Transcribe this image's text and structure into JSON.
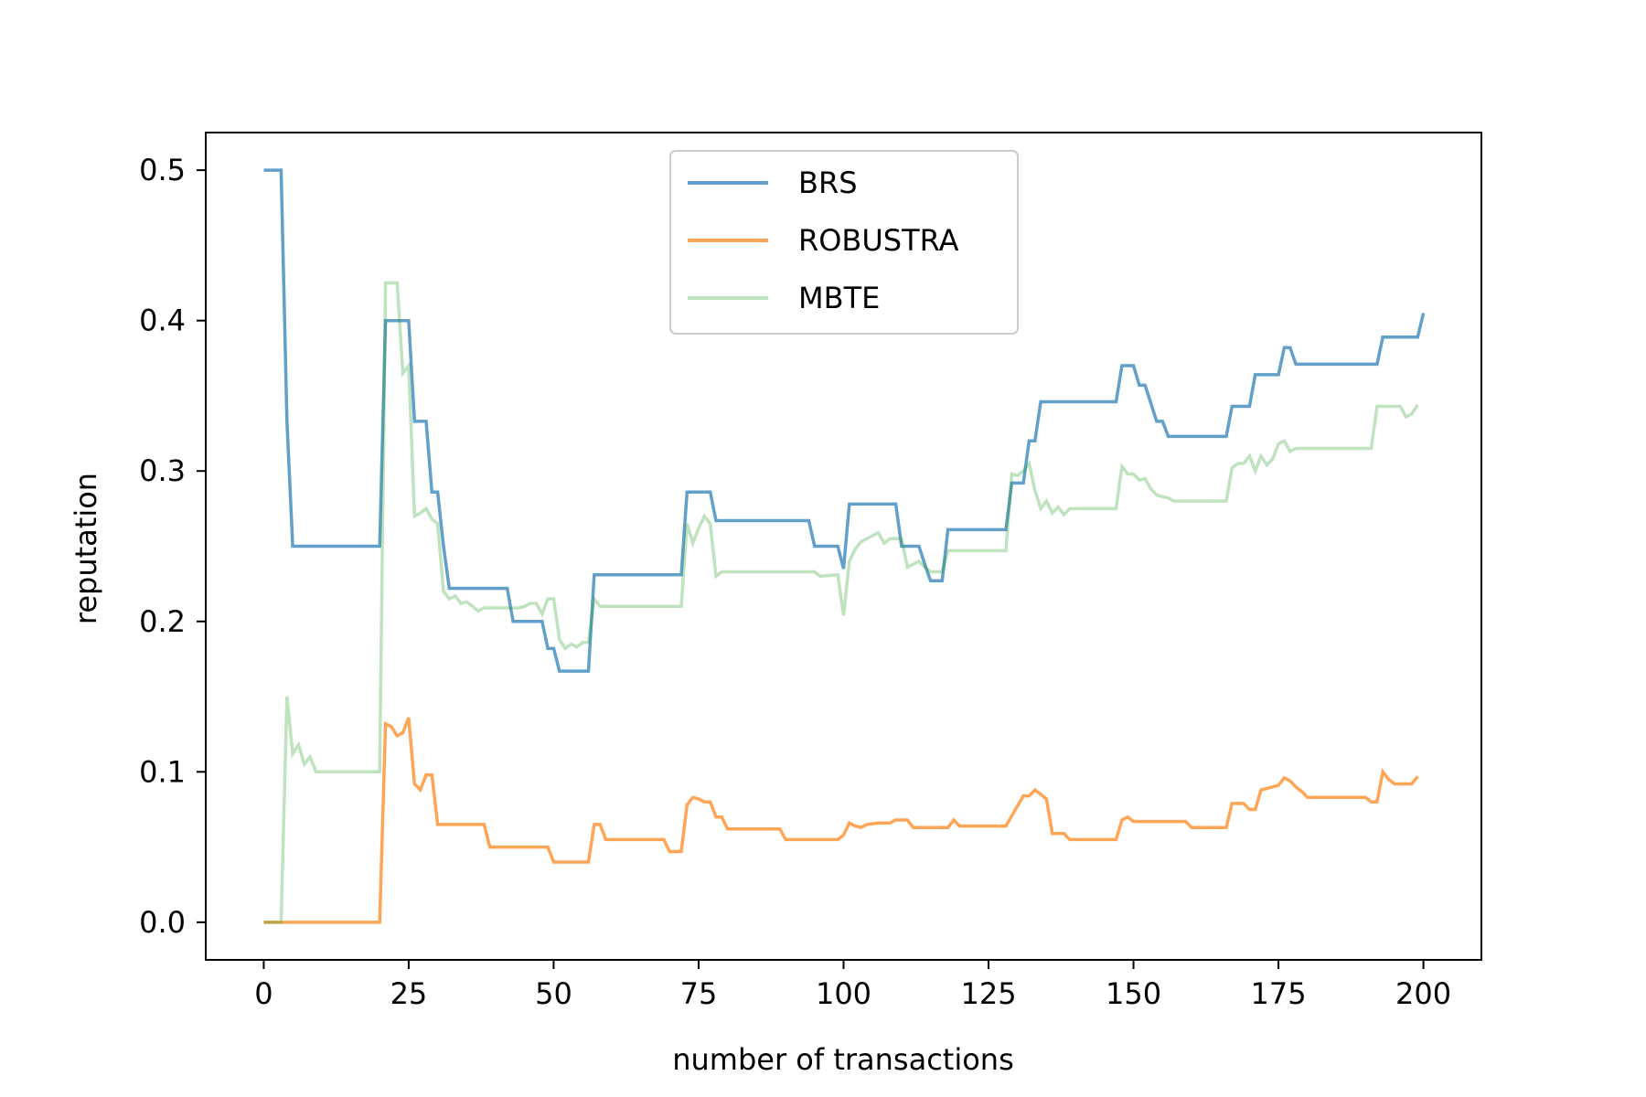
{
  "chart_data": {
    "type": "line",
    "title": "",
    "xlabel": "number of transactions",
    "ylabel": "reputation",
    "xlim": [
      -10,
      210
    ],
    "ylim": [
      -0.025,
      0.525
    ],
    "xticks": [
      0,
      25,
      50,
      75,
      100,
      125,
      150,
      175,
      200
    ],
    "yticks": [
      0.0,
      0.1,
      0.2,
      0.3,
      0.4,
      0.5
    ],
    "xtick_labels": [
      "0",
      "25",
      "50",
      "75",
      "100",
      "125",
      "150",
      "175",
      "200"
    ],
    "ytick_labels": [
      "0.0",
      "0.1",
      "0.2",
      "0.3",
      "0.4",
      "0.5"
    ],
    "grid": false,
    "legend_position": "top-center",
    "series": [
      {
        "name": "BRS",
        "color": "#1f77b4",
        "opacity": 0.7,
        "points": [
          [
            0,
            0.5
          ],
          [
            3,
            0.5
          ],
          [
            4,
            0.333
          ],
          [
            5,
            0.25
          ],
          [
            20,
            0.25
          ],
          [
            21,
            0.4
          ],
          [
            25,
            0.4
          ],
          [
            26,
            0.333
          ],
          [
            28,
            0.333
          ],
          [
            29,
            0.286
          ],
          [
            30,
            0.286
          ],
          [
            31,
            0.25
          ],
          [
            32,
            0.222
          ],
          [
            42,
            0.222
          ],
          [
            43,
            0.2
          ],
          [
            48,
            0.2
          ],
          [
            49,
            0.182
          ],
          [
            50,
            0.182
          ],
          [
            51,
            0.167
          ],
          [
            56,
            0.167
          ],
          [
            57,
            0.231
          ],
          [
            72,
            0.231
          ],
          [
            73,
            0.286
          ],
          [
            77,
            0.286
          ],
          [
            78,
            0.267
          ],
          [
            94,
            0.267
          ],
          [
            95,
            0.25
          ],
          [
            99,
            0.25
          ],
          [
            100,
            0.235
          ],
          [
            101,
            0.278
          ],
          [
            109,
            0.278
          ],
          [
            110,
            0.25
          ],
          [
            113,
            0.25
          ],
          [
            114,
            0.238
          ],
          [
            115,
            0.227
          ],
          [
            117,
            0.227
          ],
          [
            118,
            0.261
          ],
          [
            128,
            0.261
          ],
          [
            129,
            0.292
          ],
          [
            131,
            0.292
          ],
          [
            132,
            0.32
          ],
          [
            133,
            0.32
          ],
          [
            134,
            0.346
          ],
          [
            147,
            0.346
          ],
          [
            148,
            0.37
          ],
          [
            150,
            0.37
          ],
          [
            151,
            0.357
          ],
          [
            152,
            0.357
          ],
          [
            154,
            0.333
          ],
          [
            155,
            0.333
          ],
          [
            156,
            0.323
          ],
          [
            166,
            0.323
          ],
          [
            167,
            0.343
          ],
          [
            170,
            0.343
          ],
          [
            171,
            0.364
          ],
          [
            175,
            0.364
          ],
          [
            176,
            0.382
          ],
          [
            177,
            0.382
          ],
          [
            178,
            0.371
          ],
          [
            192,
            0.371
          ],
          [
            193,
            0.389
          ],
          [
            199,
            0.389
          ],
          [
            200,
            0.405
          ]
        ]
      },
      {
        "name": "ROBUSTRA",
        "color": "#ff7f0e",
        "opacity": 0.7,
        "points": [
          [
            0,
            0.0
          ],
          [
            20,
            0.0
          ],
          [
            21,
            0.132
          ],
          [
            22,
            0.13
          ],
          [
            23,
            0.124
          ],
          [
            24,
            0.126
          ],
          [
            25,
            0.136
          ],
          [
            26,
            0.092
          ],
          [
            27,
            0.088
          ],
          [
            28,
            0.098
          ],
          [
            29,
            0.098
          ],
          [
            30,
            0.065
          ],
          [
            38,
            0.065
          ],
          [
            39,
            0.05
          ],
          [
            49,
            0.05
          ],
          [
            50,
            0.04
          ],
          [
            56,
            0.04
          ],
          [
            57,
            0.065
          ],
          [
            58,
            0.065
          ],
          [
            59,
            0.055
          ],
          [
            69,
            0.055
          ],
          [
            70,
            0.047
          ],
          [
            72,
            0.047
          ],
          [
            73,
            0.078
          ],
          [
            74,
            0.083
          ],
          [
            75,
            0.082
          ],
          [
            76,
            0.08
          ],
          [
            77,
            0.08
          ],
          [
            78,
            0.07
          ],
          [
            79,
            0.07
          ],
          [
            80,
            0.062
          ],
          [
            89,
            0.062
          ],
          [
            90,
            0.055
          ],
          [
            99,
            0.055
          ],
          [
            100,
            0.058
          ],
          [
            101,
            0.066
          ],
          [
            102,
            0.064
          ],
          [
            103,
            0.063
          ],
          [
            104,
            0.065
          ],
          [
            106,
            0.066
          ],
          [
            108,
            0.066
          ],
          [
            109,
            0.068
          ],
          [
            111,
            0.068
          ],
          [
            112,
            0.063
          ],
          [
            118,
            0.063
          ],
          [
            119,
            0.068
          ],
          [
            120,
            0.064
          ],
          [
            128,
            0.064
          ],
          [
            131,
            0.084
          ],
          [
            132,
            0.084
          ],
          [
            133,
            0.088
          ],
          [
            134,
            0.085
          ],
          [
            135,
            0.082
          ],
          [
            136,
            0.059
          ],
          [
            138,
            0.059
          ],
          [
            139,
            0.055
          ],
          [
            147,
            0.055
          ],
          [
            148,
            0.068
          ],
          [
            149,
            0.07
          ],
          [
            150,
            0.067
          ],
          [
            159,
            0.067
          ],
          [
            160,
            0.063
          ],
          [
            166,
            0.063
          ],
          [
            167,
            0.079
          ],
          [
            169,
            0.079
          ],
          [
            170,
            0.075
          ],
          [
            171,
            0.075
          ],
          [
            172,
            0.088
          ],
          [
            173,
            0.089
          ],
          [
            174,
            0.09
          ],
          [
            175,
            0.091
          ],
          [
            176,
            0.096
          ],
          [
            177,
            0.094
          ],
          [
            178,
            0.09
          ],
          [
            179,
            0.087
          ],
          [
            180,
            0.083
          ],
          [
            190,
            0.083
          ],
          [
            191,
            0.08
          ],
          [
            192,
            0.08
          ],
          [
            193,
            0.1
          ],
          [
            194,
            0.095
          ],
          [
            195,
            0.092
          ],
          [
            198,
            0.092
          ],
          [
            199,
            0.097
          ]
        ]
      },
      {
        "name": "MBTE",
        "color": "#2ca02c",
        "opacity": 0.3,
        "points": [
          [
            0,
            0.0
          ],
          [
            3,
            0.0
          ],
          [
            4,
            0.15
          ],
          [
            5,
            0.112
          ],
          [
            6,
            0.118
          ],
          [
            7,
            0.105
          ],
          [
            8,
            0.11
          ],
          [
            9,
            0.1
          ],
          [
            20,
            0.1
          ],
          [
            21,
            0.425
          ],
          [
            23,
            0.425
          ],
          [
            24,
            0.365
          ],
          [
            25,
            0.37
          ],
          [
            26,
            0.27
          ],
          [
            27,
            0.272
          ],
          [
            28,
            0.275
          ],
          [
            29,
            0.268
          ],
          [
            30,
            0.265
          ],
          [
            31,
            0.22
          ],
          [
            32,
            0.215
          ],
          [
            33,
            0.217
          ],
          [
            34,
            0.212
          ],
          [
            35,
            0.213
          ],
          [
            36,
            0.21
          ],
          [
            37,
            0.207
          ],
          [
            38,
            0.209
          ],
          [
            44,
            0.209
          ],
          [
            45,
            0.21
          ],
          [
            46,
            0.212
          ],
          [
            47,
            0.212
          ],
          [
            48,
            0.205
          ],
          [
            49,
            0.215
          ],
          [
            50,
            0.215
          ],
          [
            51,
            0.188
          ],
          [
            52,
            0.182
          ],
          [
            53,
            0.185
          ],
          [
            54,
            0.183
          ],
          [
            55,
            0.186
          ],
          [
            56,
            0.186
          ],
          [
            57,
            0.215
          ],
          [
            58,
            0.21
          ],
          [
            72,
            0.21
          ],
          [
            73,
            0.265
          ],
          [
            74,
            0.252
          ],
          [
            75,
            0.262
          ],
          [
            76,
            0.27
          ],
          [
            77,
            0.265
          ],
          [
            78,
            0.23
          ],
          [
            79,
            0.233
          ],
          [
            95,
            0.233
          ],
          [
            96,
            0.23
          ],
          [
            99,
            0.231
          ],
          [
            100,
            0.204
          ],
          [
            101,
            0.24
          ],
          [
            102,
            0.248
          ],
          [
            103,
            0.253
          ],
          [
            105,
            0.257
          ],
          [
            106,
            0.259
          ],
          [
            107,
            0.252
          ],
          [
            108,
            0.255
          ],
          [
            110,
            0.255
          ],
          [
            111,
            0.236
          ],
          [
            112,
            0.238
          ],
          [
            113,
            0.24
          ],
          [
            114,
            0.236
          ],
          [
            115,
            0.233
          ],
          [
            117,
            0.233
          ],
          [
            118,
            0.247
          ],
          [
            128,
            0.247
          ],
          [
            129,
            0.298
          ],
          [
            130,
            0.297
          ],
          [
            131,
            0.3
          ],
          [
            132,
            0.305
          ],
          [
            133,
            0.287
          ],
          [
            134,
            0.275
          ],
          [
            135,
            0.28
          ],
          [
            136,
            0.272
          ],
          [
            137,
            0.276
          ],
          [
            138,
            0.271
          ],
          [
            139,
            0.275
          ],
          [
            147,
            0.275
          ],
          [
            148,
            0.303
          ],
          [
            149,
            0.298
          ],
          [
            150,
            0.298
          ],
          [
            151,
            0.294
          ],
          [
            152,
            0.295
          ],
          [
            153,
            0.288
          ],
          [
            154,
            0.284
          ],
          [
            156,
            0.282
          ],
          [
            157,
            0.28
          ],
          [
            166,
            0.28
          ],
          [
            167,
            0.302
          ],
          [
            168,
            0.305
          ],
          [
            169,
            0.305
          ],
          [
            170,
            0.31
          ],
          [
            171,
            0.3
          ],
          [
            172,
            0.31
          ],
          [
            173,
            0.304
          ],
          [
            174,
            0.308
          ],
          [
            175,
            0.318
          ],
          [
            176,
            0.32
          ],
          [
            177,
            0.313
          ],
          [
            178,
            0.315
          ],
          [
            191,
            0.315
          ],
          [
            192,
            0.343
          ],
          [
            196,
            0.343
          ],
          [
            197,
            0.336
          ],
          [
            198,
            0.338
          ],
          [
            199,
            0.344
          ]
        ]
      }
    ]
  }
}
